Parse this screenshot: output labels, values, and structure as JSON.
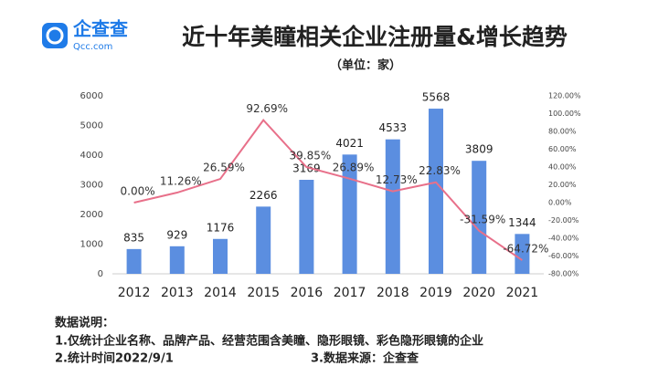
{
  "logo": {
    "name": "企查查",
    "site": "Qcc.com"
  },
  "chart_data": {
    "type": "bar",
    "title": "近十年美瞳相关企业注册量&增长趋势",
    "subtitle": "（单位：家）",
    "categories": [
      "2012",
      "2013",
      "2014",
      "2015",
      "2016",
      "2017",
      "2018",
      "2019",
      "2020",
      "2021"
    ],
    "series": [
      {
        "type": "bar",
        "color": "#5b8ee0",
        "values": [
          835,
          929,
          1176,
          2266,
          3169,
          4021,
          4533,
          5568,
          3809,
          1344
        ]
      },
      {
        "type": "line",
        "axis": "y2",
        "color": "#e8708a",
        "values": [
          0,
          11.26,
          26.59,
          92.69,
          39.85,
          26.89,
          12.73,
          22.83,
          -31.59,
          -64.72
        ],
        "value_labels": [
          "0.00%",
          "11.26%",
          "26.59%",
          "92.69%",
          "39.85%",
          "26.89%",
          "12.73%",
          "22.83%",
          "-31.59%",
          "-64.72%"
        ]
      }
    ],
    "ylim": [
      0,
      6000
    ],
    "yticks": [
      0,
      1000,
      2000,
      3000,
      4000,
      5000,
      6000
    ],
    "y2lim": [
      -80,
      120
    ],
    "y2ticks": [
      {
        "value": 120,
        "label": "120.00%"
      },
      {
        "value": 100,
        "label": "100.00%"
      },
      {
        "value": 80,
        "label": "80.00%"
      },
      {
        "value": 60,
        "label": "60.00%"
      },
      {
        "value": 40,
        "label": "40.00%"
      },
      {
        "value": 20,
        "label": "20.00%"
      },
      {
        "value": 0,
        "label": "0.00%"
      },
      {
        "value": -20,
        "label": "-20.00%"
      },
      {
        "value": -40,
        "label": "-40.00%"
      },
      {
        "value": -60,
        "label": "-60.00%"
      },
      {
        "value": -80,
        "label": "-80.00%"
      }
    ],
    "grid": false
  },
  "notes": {
    "heading": "数据说明：",
    "items": [
      "1.仅统计企业名称、品牌产品、经营范围含美瞳、隐形眼镜、彩色隐形眼镜的企业",
      "2.统计时间2022/9/1",
      "3.数据来源：企查查"
    ]
  }
}
